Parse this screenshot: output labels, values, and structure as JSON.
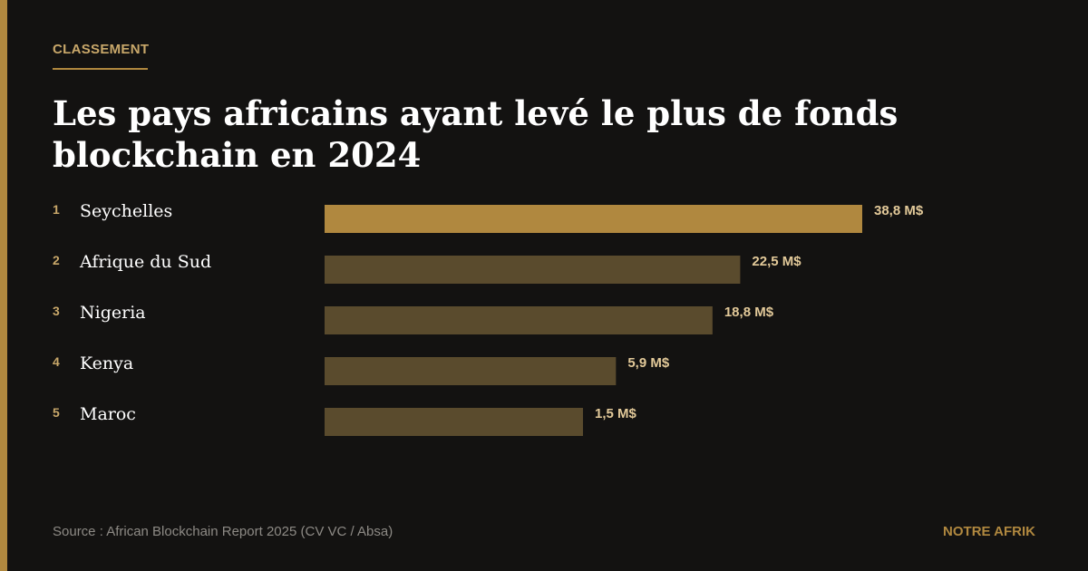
{
  "header": {
    "kicker": "CLASSEMENT",
    "title": "Les pays africains ayant levé le plus de fonds blockchain en 2024"
  },
  "colors": {
    "accent": "#b0883f",
    "bar_muted": "#5a4b2d",
    "value_label": "#e2c999",
    "rank": "#c9a86a",
    "country": "#ffffff"
  },
  "chart_data": {
    "type": "bar",
    "orientation": "horizontal",
    "ranks": [
      "1",
      "2",
      "3",
      "4",
      "5"
    ],
    "categories": [
      "Seychelles",
      "Afrique du Sud",
      "Nigeria",
      "Kenya",
      "Maroc"
    ],
    "values": [
      38.8,
      22.5,
      18.8,
      5.9,
      1.5
    ],
    "value_labels": [
      "38,8 M$",
      "22,5 M$",
      "18,8 M$",
      "5,9 M$",
      "1,5 M$"
    ],
    "unit": "M$",
    "highlight_index": 0,
    "title": "Les pays africains ayant levé le plus de fonds blockchain en 2024"
  },
  "footer": {
    "source": "Source : African Blockchain Report 2025 (CV VC / Absa)",
    "brand": "NOTRE AFRIK"
  }
}
